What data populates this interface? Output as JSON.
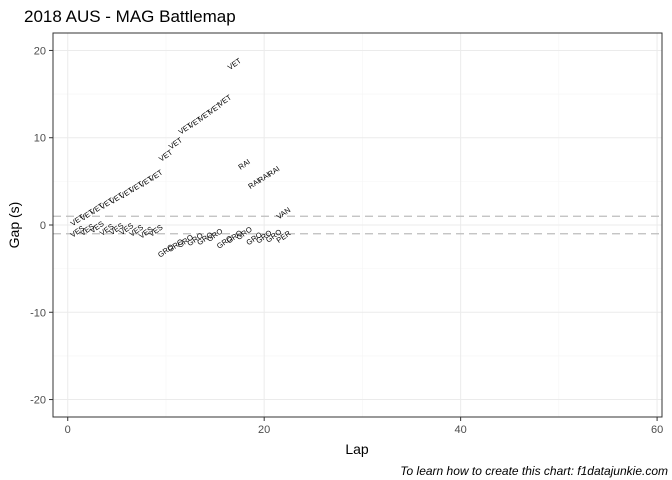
{
  "chart_data": {
    "type": "scatter",
    "title": "2018 AUS - MAG Battlemap",
    "xlabel": "Lap",
    "ylabel": "Gap (s)",
    "caption": "To learn how to create this chart: f1datajunkie.com",
    "xlim": [
      -1.5,
      60.5
    ],
    "ylim": [
      -22,
      22
    ],
    "x_ticks": [
      0,
      20,
      40,
      60
    ],
    "y_ticks": [
      -20,
      -10,
      0,
      10,
      20
    ],
    "x_tick_labels": [
      "0",
      "20",
      "40",
      "60"
    ],
    "y_tick_labels": [
      "-20",
      "-10",
      "0",
      "10",
      "20"
    ],
    "grid": true,
    "reference_lines": [
      1,
      -1
    ],
    "colors": {
      "panel_border": "#333333",
      "grid_major": "#ebebeb",
      "grid_minor": "#f5f5f5",
      "reference_line": "#bdbdbd",
      "text": "#000000",
      "tick_text": "#4d4d4d"
    },
    "points": [
      {
        "lap": 1,
        "gap": 0.5,
        "driver": "VET"
      },
      {
        "lap": 2,
        "gap": 1.1,
        "driver": "VET"
      },
      {
        "lap": 3,
        "gap": 1.8,
        "driver": "VET"
      },
      {
        "lap": 4,
        "gap": 2.4,
        "driver": "VET"
      },
      {
        "lap": 5,
        "gap": 3.0,
        "driver": "VET"
      },
      {
        "lap": 6,
        "gap": 3.6,
        "driver": "VET"
      },
      {
        "lap": 7,
        "gap": 4.3,
        "driver": "VET"
      },
      {
        "lap": 8,
        "gap": 4.9,
        "driver": "VET"
      },
      {
        "lap": 9,
        "gap": 5.6,
        "driver": "VET"
      },
      {
        "lap": 10,
        "gap": 7.9,
        "driver": "VET"
      },
      {
        "lap": 11,
        "gap": 9.3,
        "driver": "VET"
      },
      {
        "lap": 12,
        "gap": 11.0,
        "driver": "VET"
      },
      {
        "lap": 13,
        "gap": 11.7,
        "driver": "VET"
      },
      {
        "lap": 14,
        "gap": 12.5,
        "driver": "VET"
      },
      {
        "lap": 15,
        "gap": 13.3,
        "driver": "VET"
      },
      {
        "lap": 16,
        "gap": 14.2,
        "driver": "VET"
      },
      {
        "lap": 17,
        "gap": 18.4,
        "driver": "VET"
      },
      {
        "lap": 1,
        "gap": -0.8,
        "driver": "VES"
      },
      {
        "lap": 2,
        "gap": -0.6,
        "driver": "VES"
      },
      {
        "lap": 3,
        "gap": -0.3,
        "driver": "VES"
      },
      {
        "lap": 4,
        "gap": -0.6,
        "driver": "VES"
      },
      {
        "lap": 5,
        "gap": -0.5,
        "driver": "VES"
      },
      {
        "lap": 6,
        "gap": -0.5,
        "driver": "VES"
      },
      {
        "lap": 7,
        "gap": -0.7,
        "driver": "VES"
      },
      {
        "lap": 8,
        "gap": -0.9,
        "driver": "VES"
      },
      {
        "lap": 9,
        "gap": -0.7,
        "driver": "VES"
      },
      {
        "lap": 10,
        "gap": -3.0,
        "driver": "GRO"
      },
      {
        "lap": 11,
        "gap": -2.4,
        "driver": "GRO"
      },
      {
        "lap": 12,
        "gap": -1.9,
        "driver": "GRO"
      },
      {
        "lap": 13,
        "gap": -1.7,
        "driver": "GRO"
      },
      {
        "lap": 14,
        "gap": -1.6,
        "driver": "GRO"
      },
      {
        "lap": 15,
        "gap": -1.2,
        "driver": "GRO"
      },
      {
        "lap": 16,
        "gap": -2.0,
        "driver": "GRO"
      },
      {
        "lap": 17,
        "gap": -1.4,
        "driver": "GRO"
      },
      {
        "lap": 18,
        "gap": -1.0,
        "driver": "GRO"
      },
      {
        "lap": 19,
        "gap": -1.6,
        "driver": "GRO"
      },
      {
        "lap": 20,
        "gap": -1.4,
        "driver": "GRO"
      },
      {
        "lap": 21,
        "gap": -1.3,
        "driver": "GRO"
      },
      {
        "lap": 18,
        "gap": 6.9,
        "driver": "RAI"
      },
      {
        "lap": 19,
        "gap": 4.7,
        "driver": "RAI"
      },
      {
        "lap": 20,
        "gap": 5.4,
        "driver": "RAI"
      },
      {
        "lap": 21,
        "gap": 6.1,
        "driver": "RAI"
      },
      {
        "lap": 22,
        "gap": 1.3,
        "driver": "VAN"
      },
      {
        "lap": 22,
        "gap": -1.4,
        "driver": "PER"
      }
    ]
  }
}
